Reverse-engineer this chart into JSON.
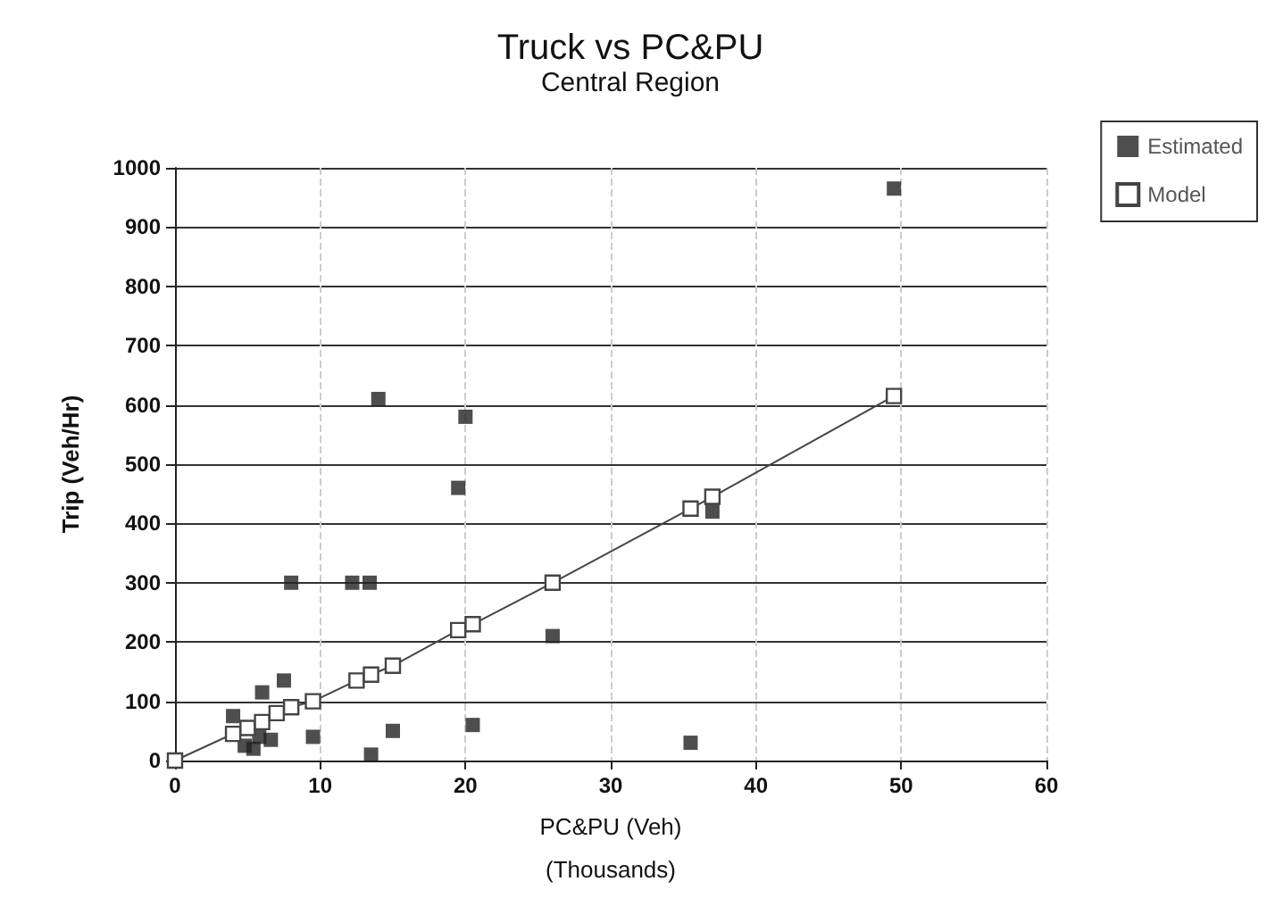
{
  "chart_data": {
    "type": "scatter",
    "title": "Truck vs PC&PU",
    "subtitle": "Central Region",
    "xlabel": "PC&PU (Veh)\n(Thousands)",
    "ylabel": "Trip (Veh/Hr)",
    "xlim": [
      0,
      60
    ],
    "xticks": [
      0,
      10,
      20,
      30,
      40,
      50,
      60
    ],
    "ylim": [
      0,
      1000
    ],
    "yticks": [
      0,
      100,
      200,
      300,
      400,
      500,
      600,
      700,
      800,
      900,
      1000
    ],
    "grid": true,
    "legend": "top right",
    "series": [
      {
        "name": "Estimated",
        "marker": "square",
        "color": "#222222",
        "x": [
          4,
          4.8,
          5.4,
          5.8,
          6,
          6.6,
          7.5,
          8,
          9.5,
          12.2,
          13.4,
          13.5,
          14,
          15,
          19.5,
          20,
          20.5,
          26,
          35.5,
          37,
          49.5
        ],
        "values": [
          75,
          25,
          20,
          40,
          115,
          35,
          135,
          300,
          40,
          300,
          300,
          10,
          610,
          50,
          460,
          580,
          60,
          210,
          30,
          420,
          965
        ]
      },
      {
        "name": "Model",
        "type": "line",
        "marker": "square",
        "color": "#444444",
        "x": [
          0,
          4,
          5,
          6,
          7,
          8,
          9.5,
          12.5,
          13.5,
          15,
          19.5,
          20.5,
          26,
          35.5,
          37,
          49.5
        ],
        "values": [
          0,
          45,
          55,
          65,
          80,
          90,
          100,
          135,
          145,
          160,
          220,
          230,
          300,
          425,
          445,
          615
        ]
      }
    ]
  }
}
